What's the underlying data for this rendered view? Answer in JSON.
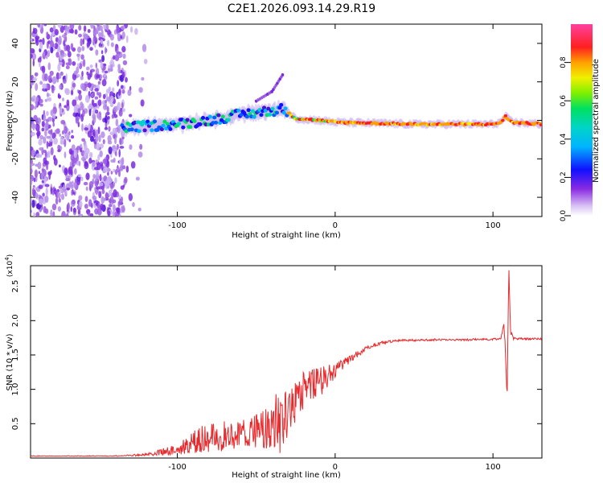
{
  "page_title": "C2E1.2026.093.14.29.R19",
  "colors": {
    "snr_line": "#e8282b",
    "axis": "#000000",
    "spectrogram_low": "#7a2be0",
    "spectrogram_mid": "#00d4c8",
    "spectrogram_high": "#ff1a1a"
  },
  "chart_data": [
    {
      "type": "heatmap",
      "name": "spectrogram",
      "xlabel": "Height of straight line (km)",
      "ylabel": "Frequency (Hz)",
      "xlim": [
        -193,
        131
      ],
      "ylim": [
        -50,
        50
      ],
      "x_ticks": [
        -100,
        0,
        100
      ],
      "x_tick_labels": [
        "-100",
        "0",
        "100"
      ],
      "y_ticks": [
        -40,
        -20,
        0,
        20,
        40
      ],
      "y_tick_labels": [
        "-40",
        "-20",
        "0",
        "20",
        "40"
      ],
      "colorbar": {
        "label": "Normalized spectral amplitude",
        "range": [
          0,
          1
        ],
        "ticks": [
          0.0,
          0.2,
          0.4,
          0.6,
          0.8
        ],
        "tick_labels": [
          "0.0",
          "0.2",
          "0.4",
          "0.6",
          "0.8"
        ]
      },
      "ridge": {
        "description_points": [
          [
            -135,
            -4
          ],
          [
            -120,
            -3
          ],
          [
            -100,
            -2
          ],
          [
            -80,
            0
          ],
          [
            -60,
            3
          ],
          [
            -40,
            5
          ],
          [
            -33,
            6
          ],
          [
            -25,
            1
          ],
          [
            -10,
            0
          ],
          [
            0,
            -1
          ],
          [
            50,
            -2
          ],
          [
            100,
            -2
          ],
          [
            105,
            -1
          ],
          [
            108,
            2
          ],
          [
            112,
            -1
          ],
          [
            131,
            -2
          ]
        ],
        "peak_amplitude": 1.0
      },
      "noise_region_x": [
        -193,
        -120
      ],
      "branch_points": [
        [
          -50,
          10
        ],
        [
          -40,
          15
        ],
        [
          -33,
          24
        ]
      ]
    },
    {
      "type": "line",
      "name": "snr",
      "xlabel": "Height of straight line (km)",
      "ylabel": "SNR (10 * v/v)",
      "y_scale_label": "(x10",
      "y_scale_exponent": "4",
      "xlim": [
        -193,
        131
      ],
      "ylim": [
        0,
        2.8
      ],
      "x_ticks": [
        -100,
        0,
        100
      ],
      "x_tick_labels": [
        "-100",
        "0",
        "100"
      ],
      "y_ticks": [
        0.5,
        1.0,
        1.5,
        2.0,
        2.5
      ],
      "y_tick_labels": [
        "0.5",
        "1.0",
        "1.5",
        "2.0",
        "2.5"
      ],
      "envelope": {
        "x": [
          -193,
          -140,
          -120,
          -100,
          -85,
          -70,
          -55,
          -45,
          -35,
          -30,
          -25,
          -20,
          -10,
          0,
          10,
          20,
          30,
          40,
          60,
          80,
          100,
          105,
          107,
          108,
          109,
          110,
          111,
          113,
          131
        ],
        "y": [
          0.03,
          0.03,
          0.05,
          0.12,
          0.28,
          0.32,
          0.36,
          0.4,
          0.55,
          0.7,
          0.82,
          0.95,
          1.1,
          1.28,
          1.45,
          1.6,
          1.68,
          1.71,
          1.72,
          1.72,
          1.73,
          1.74,
          1.95,
          1.45,
          0.85,
          2.8,
          1.9,
          1.74,
          1.73
        ],
        "noise": [
          0.005,
          0.005,
          0.02,
          0.08,
          0.2,
          0.22,
          0.22,
          0.3,
          0.5,
          0.4,
          0.35,
          0.3,
          0.22,
          0.12,
          0.06,
          0.03,
          0.02,
          0.015,
          0.015,
          0.015,
          0.015,
          0.015,
          0.02,
          0.02,
          0.02,
          0.02,
          0.02,
          0.015,
          0.015
        ]
      }
    }
  ]
}
